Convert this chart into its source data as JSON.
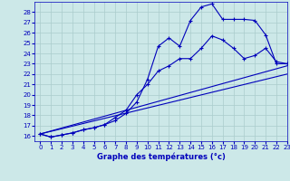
{
  "xlabel": "Graphe des températures (°c)",
  "xlim": [
    -0.5,
    23
  ],
  "ylim": [
    15.5,
    29
  ],
  "yticks": [
    16,
    17,
    18,
    19,
    20,
    21,
    22,
    23,
    24,
    25,
    26,
    27,
    28
  ],
  "xticks": [
    0,
    1,
    2,
    3,
    4,
    5,
    6,
    7,
    8,
    9,
    10,
    11,
    12,
    13,
    14,
    15,
    16,
    17,
    18,
    19,
    20,
    21,
    22,
    23
  ],
  "bg_color": "#cce8e8",
  "line_color": "#0000bb",
  "grid_color": "#aacccc",
  "line1_x": [
    0,
    1,
    2,
    3,
    4,
    5,
    6,
    7,
    8,
    9,
    10,
    11,
    12,
    13,
    14,
    15,
    16,
    17,
    18,
    19,
    20,
    21,
    22,
    23
  ],
  "line1_y": [
    16.2,
    15.9,
    16.1,
    16.3,
    16.6,
    16.8,
    17.1,
    17.5,
    18.2,
    19.3,
    21.5,
    24.7,
    25.5,
    24.7,
    27.2,
    28.5,
    28.8,
    27.3,
    27.3,
    27.3,
    27.2,
    25.8,
    23.0,
    23.0
  ],
  "line2_x": [
    0,
    1,
    2,
    3,
    4,
    5,
    6,
    7,
    8,
    9,
    10,
    11,
    12,
    13,
    14,
    15,
    16,
    17,
    18,
    19,
    20,
    21,
    22,
    23
  ],
  "line2_y": [
    16.2,
    15.9,
    16.1,
    16.3,
    16.6,
    16.8,
    17.1,
    17.8,
    18.5,
    20.0,
    21.0,
    22.3,
    22.8,
    23.5,
    23.5,
    24.5,
    25.7,
    25.3,
    24.5,
    23.5,
    23.8,
    24.5,
    23.2,
    23.0
  ],
  "line3_x": [
    0,
    23
  ],
  "line3_y": [
    16.2,
    22.8
  ],
  "line4_x": [
    0,
    23
  ],
  "line4_y": [
    16.2,
    22.0
  ]
}
